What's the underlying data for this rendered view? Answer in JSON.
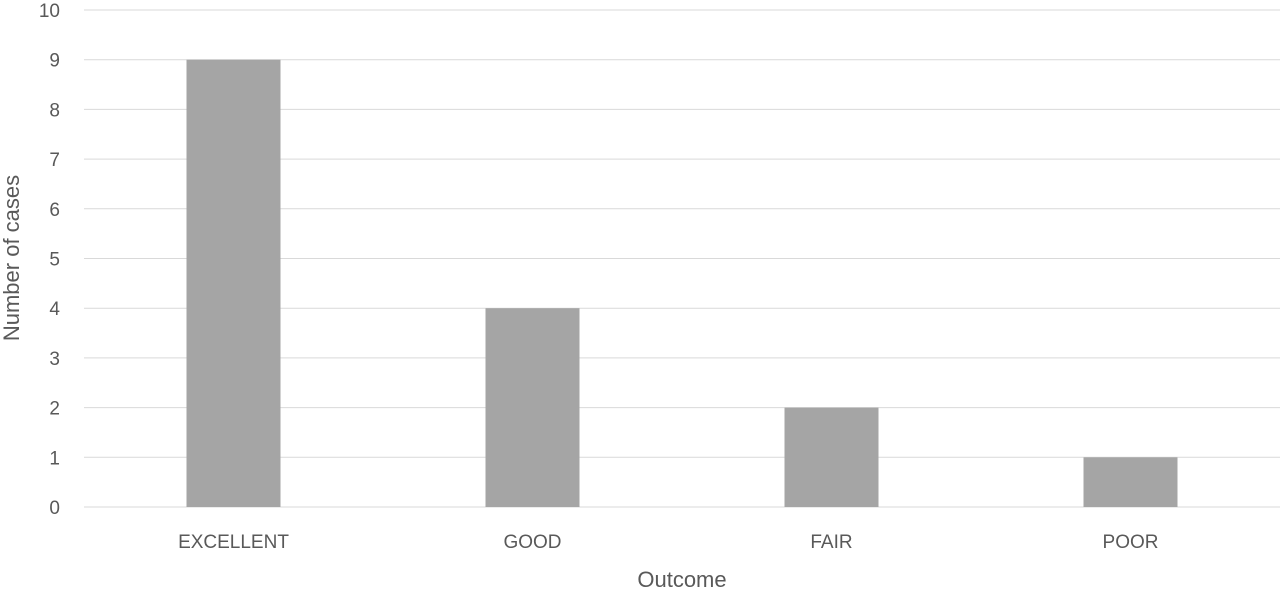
{
  "chart_data": {
    "type": "bar",
    "title": "",
    "xlabel": "Outcome",
    "ylabel": "Number of cases",
    "categories": [
      "EXCELLENT",
      "GOOD",
      "FAIR",
      "POOR"
    ],
    "values": [
      9,
      4,
      2,
      1
    ],
    "ylim": [
      0,
      10
    ],
    "yticks": [
      "0",
      "1",
      "2",
      "3",
      "4",
      "5",
      "6",
      "7",
      "8",
      "9",
      "10"
    ],
    "grid": true,
    "legend": "none",
    "bar_color": "#a5a5a5",
    "grid_color": "#d9d9d9",
    "text_color": "#595959"
  }
}
